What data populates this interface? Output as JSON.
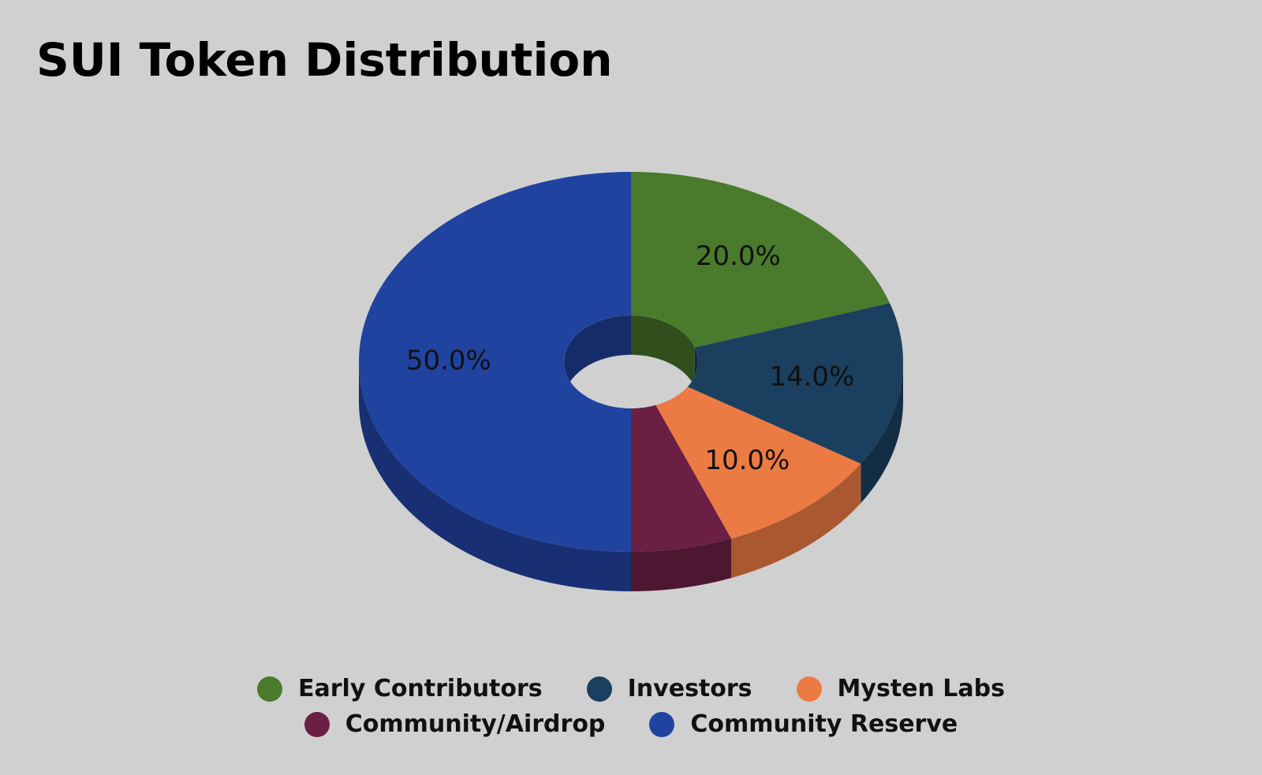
{
  "chart_data": {
    "type": "pie",
    "title": "SUI Token Distribution",
    "categories": [
      "Early Contributors",
      "Investors",
      "Mysten Labs",
      "Community/Airdrop",
      "Community Reserve"
    ],
    "values": [
      20,
      14,
      10,
      6,
      50
    ],
    "value_labels": [
      "20.0%",
      "14.0%",
      "10.0%",
      null,
      "50.0%"
    ],
    "colors": [
      "#4a7a2c",
      "#1b3f5e",
      "#ec7a43",
      "#6b1f44",
      "#2143a0"
    ],
    "legend": "bottom"
  }
}
